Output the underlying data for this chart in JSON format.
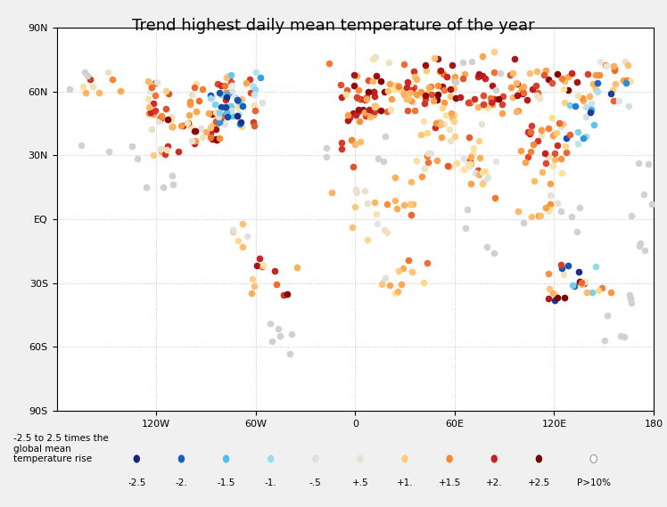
{
  "title": "Trend highest daily mean temperature of the year",
  "legend_text": "-2.5 to 2.5 times the\nglobal mean\ntemperature rise",
  "legend_values": [
    -2.5,
    -2.0,
    -1.5,
    -1.0,
    -0.5,
    0.5,
    1.0,
    1.5,
    2.0,
    2.5
  ],
  "legend_labels": [
    "-2.5",
    "-2.",
    "-1.5",
    "-1.",
    "-.5",
    "+.5",
    "+1.",
    "+1.5",
    "+2.",
    "+2.5"
  ],
  "color_stops_neg": [
    [
      0.0,
      [
        0.1,
        0.13,
        0.49
      ]
    ],
    [
      0.2,
      [
        0.08,
        0.38,
        0.74
      ]
    ],
    [
      0.4,
      [
        0.3,
        0.75,
        0.93
      ]
    ],
    [
      0.65,
      [
        0.69,
        0.89,
        0.94
      ]
    ],
    [
      0.82,
      [
        0.88,
        0.88,
        0.88
      ]
    ],
    [
      1.0,
      [
        0.94,
        0.94,
        0.94
      ]
    ]
  ],
  "color_stops_pos": [
    [
      0.0,
      [
        0.94,
        0.94,
        0.94
      ]
    ],
    [
      0.18,
      [
        0.88,
        0.88,
        0.88
      ]
    ],
    [
      0.32,
      [
        1.0,
        0.89,
        0.6
      ]
    ],
    [
      0.58,
      [
        0.99,
        0.57,
        0.22
      ]
    ],
    [
      0.78,
      [
        0.8,
        0.15,
        0.15
      ]
    ],
    [
      1.0,
      [
        0.48,
        0.0,
        0.0
      ]
    ]
  ],
  "gray_color": [
    0.82,
    0.82,
    0.82
  ],
  "map_bg": "white",
  "fig_bg": "#f0f0f0",
  "coast_color": "#aaaaaa",
  "coast_lw": 0.5,
  "grid_color": "#bbbbbb",
  "grid_lw": 0.6,
  "grid_ls": "dotted",
  "marker_size": 5.5,
  "title_fontsize": 13,
  "tick_fontsize": 8,
  "legend_fontsize": 7.5,
  "central_longitude": 90,
  "xtick_positions": [
    0,
    60,
    120,
    180,
    -120,
    -60
  ],
  "xtick_labels": [
    "0",
    "60E",
    "120E",
    "180",
    "120W",
    "60W"
  ],
  "ytick_positions": [
    -90,
    -60,
    -30,
    0,
    30,
    60,
    90
  ],
  "ytick_labels": [
    "90S",
    "60S",
    "30S",
    "EQ",
    "30N",
    "60N",
    "90N"
  ]
}
